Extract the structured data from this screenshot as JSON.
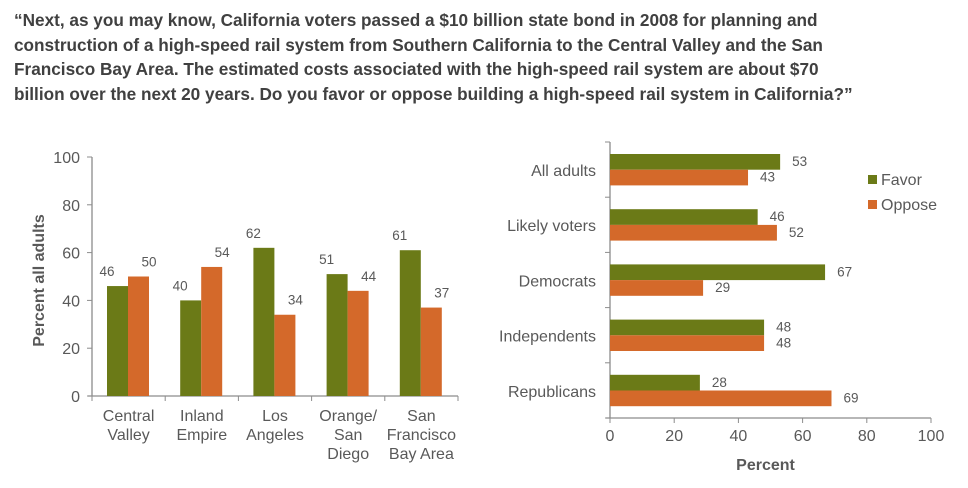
{
  "title": "“Next, as you may know, California voters passed a $10 billion state bond in 2008 for planning and construction of a high-speed rail system from Southern California to the Central Valley and the San Francisco Bay Area. The estimated costs associated with the high-speed rail system are about $70 billion over the next 20 years. Do you favor or oppose building a high-speed rail system in California?”",
  "colors": {
    "favor": "#6b7a17",
    "oppose": "#d4692a",
    "axis": "#8c8c8c",
    "text": "#595959"
  },
  "chart_data": [
    {
      "type": "bar",
      "orientation": "vertical",
      "categories": [
        [
          "Central",
          "Valley"
        ],
        [
          "Inland",
          "Empire"
        ],
        [
          "Los",
          "Angeles"
        ],
        [
          "Orange/",
          "San",
          "Diego"
        ],
        [
          "San",
          "Francisco",
          "Bay Area"
        ]
      ],
      "series": [
        {
          "key": "favor",
          "values": [
            46,
            40,
            62,
            51,
            61
          ]
        },
        {
          "key": "oppose",
          "values": [
            50,
            54,
            34,
            44,
            37
          ]
        }
      ],
      "ylabel": "Percent all adults",
      "ylim": [
        0,
        100
      ],
      "yticks": [
        0,
        20,
        40,
        60,
        80,
        100
      ],
      "grid": false,
      "data_labels": true
    },
    {
      "type": "bar",
      "orientation": "horizontal",
      "categories": [
        "All adults",
        "Likely voters",
        "Democrats",
        "Independents",
        "Republicans"
      ],
      "series": [
        {
          "key": "favor",
          "name": "Favor",
          "values": [
            53,
            46,
            67,
            48,
            28
          ]
        },
        {
          "key": "oppose",
          "name": "Oppose",
          "values": [
            43,
            52,
            29,
            48,
            69
          ]
        }
      ],
      "xlabel": "Percent",
      "xlim": [
        0,
        100
      ],
      "xticks": [
        0,
        20,
        40,
        60,
        80,
        100
      ],
      "grid": false,
      "legend": "top-right",
      "data_labels": true
    }
  ]
}
